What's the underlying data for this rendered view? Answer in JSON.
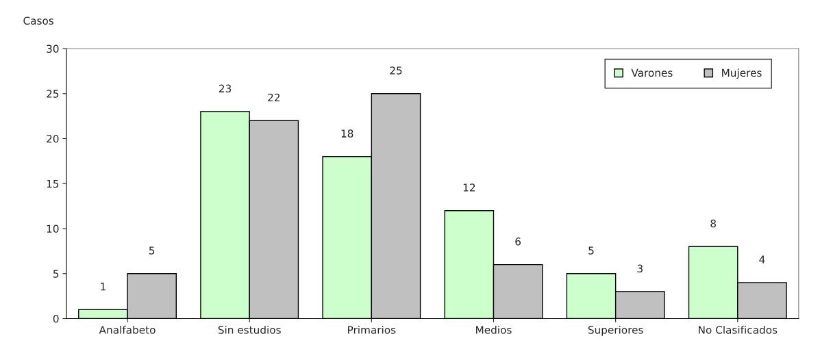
{
  "chart_data": {
    "type": "bar",
    "ylabel": "Casos",
    "categories": [
      "Analfabeto",
      "Sin estudios",
      "Primarios",
      "Medios",
      "Superiores",
      "No Clasificados"
    ],
    "series": [
      {
        "name": "Varones",
        "color": "#ccffcc",
        "values": [
          1,
          23,
          18,
          12,
          5,
          8
        ]
      },
      {
        "name": "Mujeres",
        "color": "#c0c0c0",
        "values": [
          5,
          22,
          25,
          6,
          3,
          4
        ]
      }
    ],
    "ylim": [
      0,
      30
    ],
    "yticks": [
      0,
      5,
      10,
      15,
      20,
      25,
      30
    ],
    "grid": false,
    "legend": "top right",
    "data_labels": true
  }
}
